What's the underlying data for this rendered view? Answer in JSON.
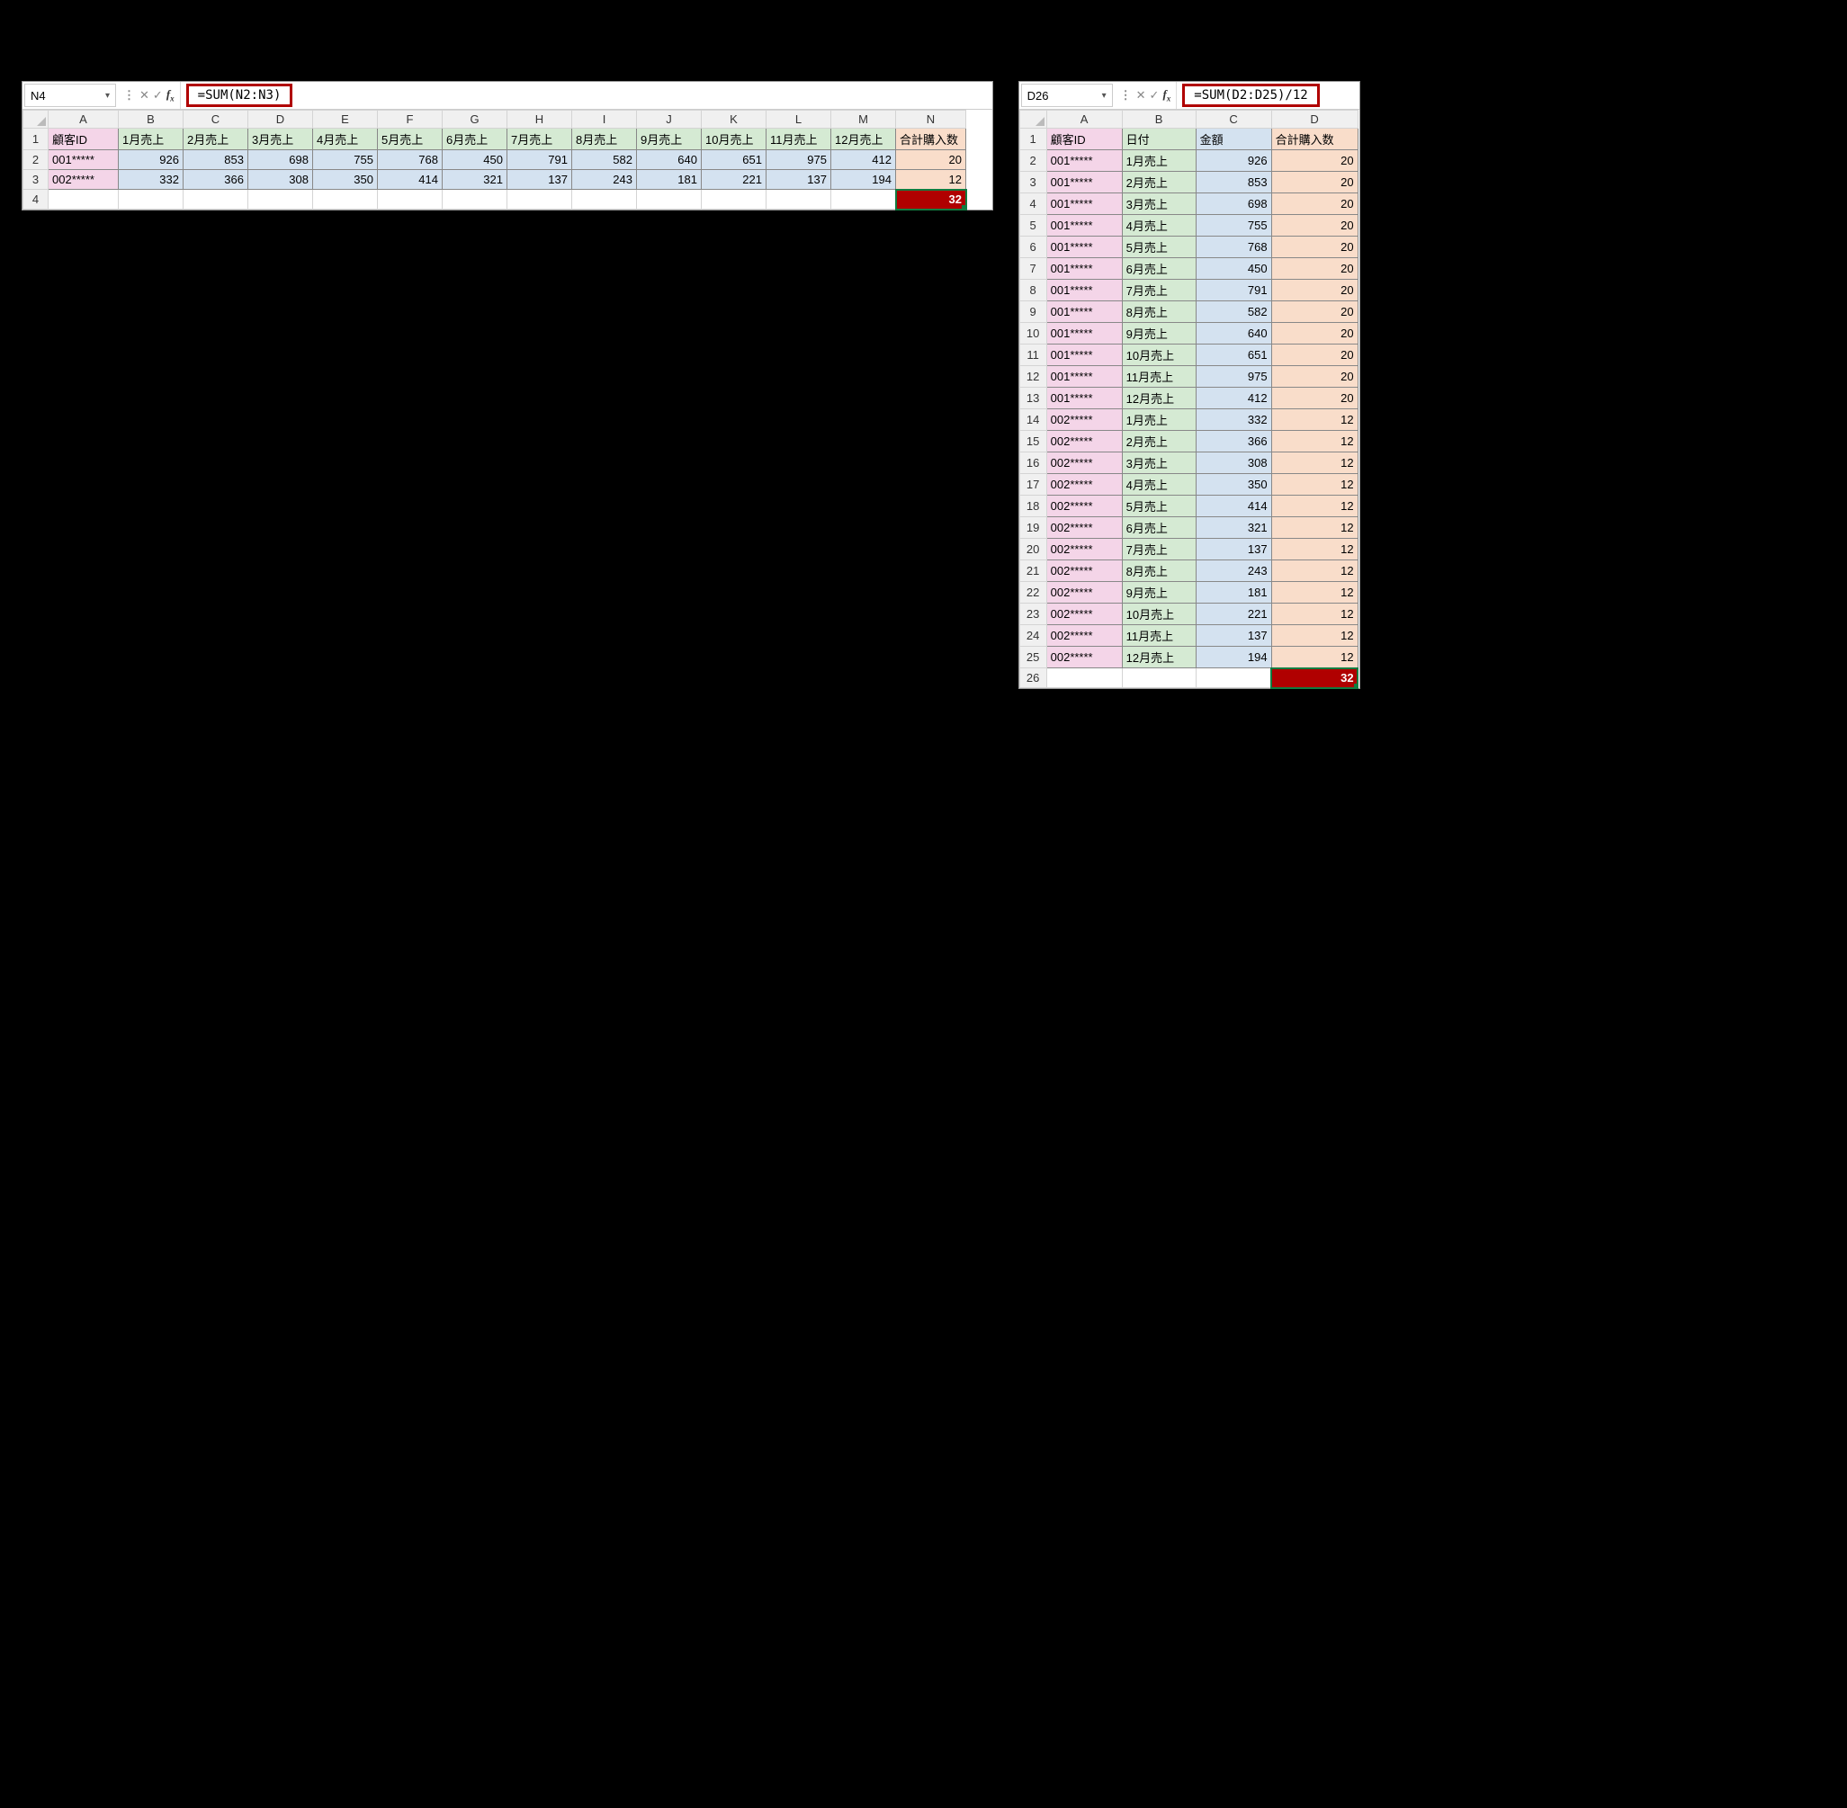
{
  "sheet1": {
    "nameBox": "N4",
    "formula": "=SUM(N2:N3)",
    "colLetters": [
      "A",
      "B",
      "C",
      "D",
      "E",
      "F",
      "G",
      "H",
      "I",
      "J",
      "K",
      "L",
      "M",
      "N"
    ],
    "headers": [
      "顧客ID",
      "1月売上",
      "2月売上",
      "3月売上",
      "4月売上",
      "5月売上",
      "6月売上",
      "7月売上",
      "8月売上",
      "9月売上",
      "10月売上",
      "11月売上",
      "12月売上",
      "合計購入数"
    ],
    "rows": [
      {
        "id": "001*****",
        "vals": [
          926,
          853,
          698,
          755,
          768,
          450,
          791,
          582,
          640,
          651,
          975,
          412
        ],
        "total": 20
      },
      {
        "id": "002*****",
        "vals": [
          332,
          366,
          308,
          350,
          414,
          321,
          137,
          243,
          181,
          221,
          137,
          194
        ],
        "total": 12
      }
    ],
    "result": 32,
    "selCol": "N",
    "selRow": 4
  },
  "sheet2": {
    "nameBox": "D26",
    "formula": "=SUM(D2:D25)/12",
    "colLetters": [
      "A",
      "B",
      "C",
      "D"
    ],
    "headers": [
      "顧客ID",
      "日付",
      "金額",
      "合計購入数"
    ],
    "rows": [
      {
        "id": "001*****",
        "date": "1月売上",
        "amt": 926,
        "tot": 20
      },
      {
        "id": "001*****",
        "date": "2月売上",
        "amt": 853,
        "tot": 20
      },
      {
        "id": "001*****",
        "date": "3月売上",
        "amt": 698,
        "tot": 20
      },
      {
        "id": "001*****",
        "date": "4月売上",
        "amt": 755,
        "tot": 20
      },
      {
        "id": "001*****",
        "date": "5月売上",
        "amt": 768,
        "tot": 20
      },
      {
        "id": "001*****",
        "date": "6月売上",
        "amt": 450,
        "tot": 20
      },
      {
        "id": "001*****",
        "date": "7月売上",
        "amt": 791,
        "tot": 20
      },
      {
        "id": "001*****",
        "date": "8月売上",
        "amt": 582,
        "tot": 20
      },
      {
        "id": "001*****",
        "date": "9月売上",
        "amt": 640,
        "tot": 20
      },
      {
        "id": "001*****",
        "date": "10月売上",
        "amt": 651,
        "tot": 20
      },
      {
        "id": "001*****",
        "date": "11月売上",
        "amt": 975,
        "tot": 20
      },
      {
        "id": "001*****",
        "date": "12月売上",
        "amt": 412,
        "tot": 20
      },
      {
        "id": "002*****",
        "date": "1月売上",
        "amt": 332,
        "tot": 12
      },
      {
        "id": "002*****",
        "date": "2月売上",
        "amt": 366,
        "tot": 12
      },
      {
        "id": "002*****",
        "date": "3月売上",
        "amt": 308,
        "tot": 12
      },
      {
        "id": "002*****",
        "date": "4月売上",
        "amt": 350,
        "tot": 12
      },
      {
        "id": "002*****",
        "date": "5月売上",
        "amt": 414,
        "tot": 12
      },
      {
        "id": "002*****",
        "date": "6月売上",
        "amt": 321,
        "tot": 12
      },
      {
        "id": "002*****",
        "date": "7月売上",
        "amt": 137,
        "tot": 12
      },
      {
        "id": "002*****",
        "date": "8月売上",
        "amt": 243,
        "tot": 12
      },
      {
        "id": "002*****",
        "date": "9月売上",
        "amt": 181,
        "tot": 12
      },
      {
        "id": "002*****",
        "date": "10月売上",
        "amt": 221,
        "tot": 12
      },
      {
        "id": "002*****",
        "date": "11月売上",
        "amt": 137,
        "tot": 12
      },
      {
        "id": "002*****",
        "date": "12月売上",
        "amt": 194,
        "tot": 12
      }
    ],
    "result": 32,
    "selCol": "D",
    "selRow": 26
  },
  "colors": {
    "pink": "#f4d5e8",
    "green": "#d5ead3",
    "blue": "#d4e2f0",
    "peach": "#f9ddca",
    "highlight": "#b00000",
    "selection": "#107c41"
  }
}
